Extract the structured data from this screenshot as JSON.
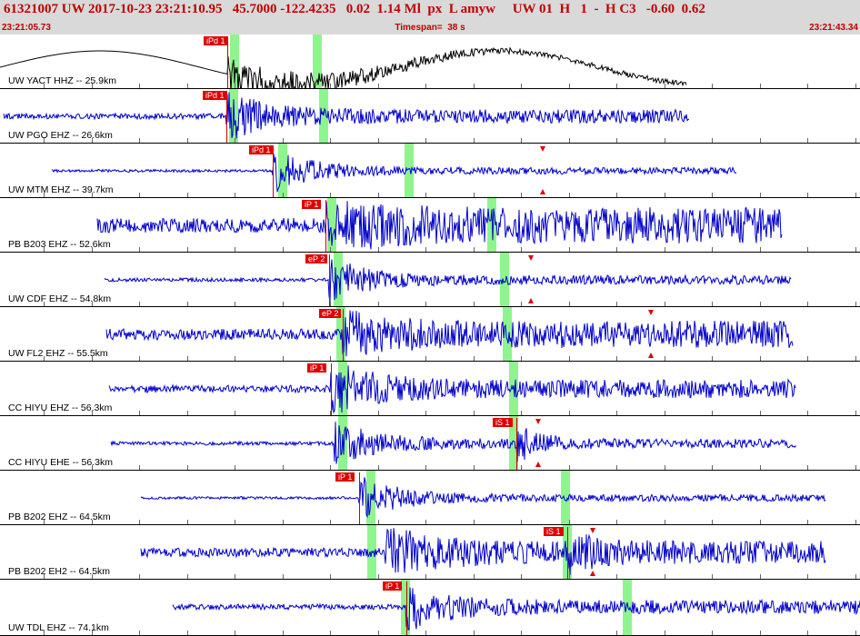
{
  "header": {
    "event_line": "61321007 UW 2017-10-23 23:21:10.95   45.7000 -122.4235   0.02  1.14 Ml  px  L amyw     UW 01  H   1  -  H C3   -0.60  0.62",
    "start_time": "23:21:05.73",
    "timespan": "Timespan=  38 s",
    "end_time": "23:21:43.34"
  },
  "colors": {
    "trace_first": "#000000",
    "trace": "#0000cc",
    "pick": "#e00000",
    "window": "#8ef58e",
    "header_bg": "#d9d9d9",
    "header_text": "#c00000"
  },
  "channels": [
    {
      "label": "UW YACT HHZ -- 25.9km",
      "picks": [
        "iPd 1"
      ]
    },
    {
      "label": "UW PGO EHZ -- 26.6km",
      "picks": [
        "iPd 1"
      ]
    },
    {
      "label": "UW MTM EHZ -- 39.7km",
      "picks": [
        "iPd 1"
      ]
    },
    {
      "label": "PB B203 EHZ -- 52.6km",
      "picks": [
        "iP 1"
      ]
    },
    {
      "label": "UW CDF EHZ -- 54.8km",
      "picks": [
        "eP 2"
      ]
    },
    {
      "label": "UW FL2 EHZ -- 55.5km",
      "picks": [
        "eP 2"
      ]
    },
    {
      "label": "CC HIYU EHZ -- 56.3km",
      "picks": [
        "iP 1"
      ]
    },
    {
      "label": "CC HIYU EHE -- 56.3km",
      "picks": [
        "iS 1"
      ]
    },
    {
      "label": "PB B202 EHZ -- 64.5km",
      "picks": [
        "iP 1"
      ]
    },
    {
      "label": "PB B202 EH2 -- 64.5km",
      "picks": [
        "iS 1"
      ]
    },
    {
      "label": "UW TDL EHZ -- 74.1km",
      "picks": [
        "iP 1"
      ]
    }
  ]
}
